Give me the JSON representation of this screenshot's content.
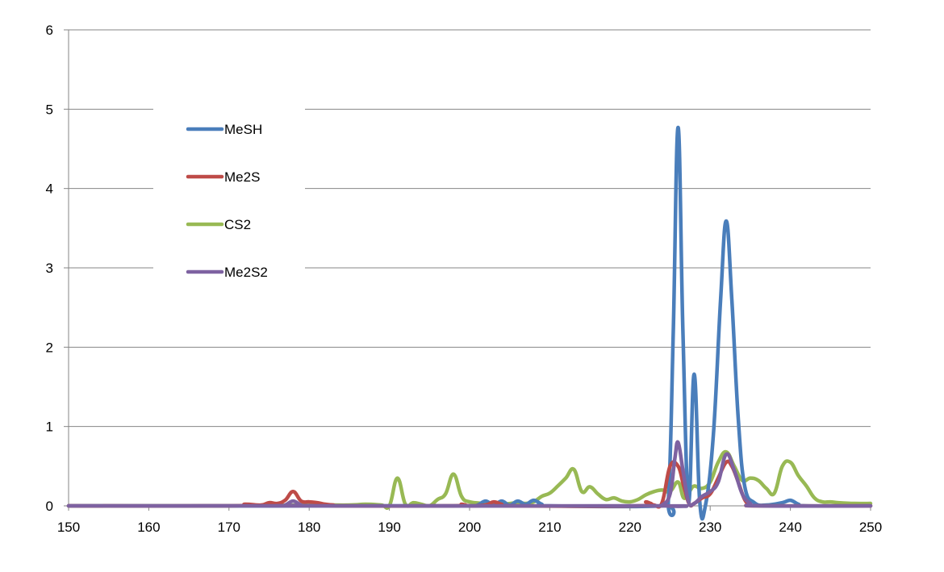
{
  "chart_data": {
    "type": "line",
    "title": "",
    "xlabel": "",
    "ylabel": "",
    "xlim": [
      150,
      250
    ],
    "ylim": [
      0,
      6
    ],
    "x_ticks": [
      150,
      160,
      170,
      180,
      190,
      200,
      210,
      220,
      230,
      240,
      250
    ],
    "y_ticks": [
      0,
      1,
      2,
      3,
      4,
      5,
      6
    ],
    "grid": "horizontal",
    "legend_position": "upper-left",
    "series": [
      {
        "name": "MeSH",
        "color": "#4a7ebb",
        "points": [
          [
            150,
            0
          ],
          [
            200,
            0
          ],
          [
            201,
            0.01
          ],
          [
            202,
            0.06
          ],
          [
            203,
            0.01
          ],
          [
            204,
            0.06
          ],
          [
            205,
            0.01
          ],
          [
            206,
            0.06
          ],
          [
            207,
            0.02
          ],
          [
            208,
            0.07
          ],
          [
            209,
            0.02
          ],
          [
            210,
            0
          ],
          [
            224,
            0
          ],
          [
            224.8,
            0.1
          ],
          [
            225.4,
            2.2
          ],
          [
            226,
            4.77
          ],
          [
            226.6,
            2.2
          ],
          [
            227.3,
            0.05
          ],
          [
            228,
            1.66
          ],
          [
            228.7,
            0.05
          ],
          [
            229.4,
            0
          ],
          [
            230.4,
            0.9
          ],
          [
            231.3,
            2.6
          ],
          [
            232,
            3.59
          ],
          [
            232.7,
            2.6
          ],
          [
            233.5,
            1.1
          ],
          [
            234.3,
            0.25
          ],
          [
            235.5,
            0.04
          ],
          [
            237,
            0.01
          ],
          [
            239,
            0.04
          ],
          [
            240,
            0.07
          ],
          [
            241,
            0.02
          ],
          [
            242,
            0
          ],
          [
            250,
            0
          ]
        ]
      },
      {
        "name": "Me2S",
        "color": "#be4b48",
        "points": [
          [
            150,
            0
          ],
          [
            170,
            0
          ],
          [
            172,
            0.02
          ],
          [
            174,
            0.01
          ],
          [
            175,
            0.04
          ],
          [
            176,
            0.03
          ],
          [
            177,
            0.07
          ],
          [
            178,
            0.18
          ],
          [
            179,
            0.06
          ],
          [
            180,
            0.05
          ],
          [
            181,
            0.04
          ],
          [
            182,
            0.02
          ],
          [
            183,
            0.01
          ],
          [
            184,
            0
          ],
          [
            198,
            0
          ],
          [
            199,
            0.02
          ],
          [
            200,
            0
          ],
          [
            202,
            0.01
          ],
          [
            203,
            0.05
          ],
          [
            204,
            0.02
          ],
          [
            205,
            0
          ],
          [
            221,
            0
          ],
          [
            222,
            0.05
          ],
          [
            223,
            0.01
          ],
          [
            224,
            0.04
          ],
          [
            225,
            0.5
          ],
          [
            226,
            0.5
          ],
          [
            226.7,
            0.25
          ],
          [
            227.4,
            0.02
          ],
          [
            228,
            0.03
          ],
          [
            229,
            0.1
          ],
          [
            230,
            0.15
          ],
          [
            231,
            0.35
          ],
          [
            232,
            0.55
          ],
          [
            232.7,
            0.5
          ],
          [
            233.5,
            0.3
          ],
          [
            234.3,
            0.08
          ],
          [
            235,
            0.02
          ],
          [
            236,
            0
          ],
          [
            250,
            0
          ]
        ]
      },
      {
        "name": "CS2",
        "color": "#98b954",
        "points": [
          [
            150,
            0
          ],
          [
            160,
            0
          ],
          [
            170,
            0
          ],
          [
            180,
            0.01
          ],
          [
            185,
            0.01
          ],
          [
            187,
            0.02
          ],
          [
            189,
            0.01
          ],
          [
            190,
            0
          ],
          [
            191,
            0.35
          ],
          [
            192,
            0.02
          ],
          [
            193,
            0.04
          ],
          [
            194,
            0.02
          ],
          [
            195,
            0
          ],
          [
            196,
            0.08
          ],
          [
            197,
            0.15
          ],
          [
            198,
            0.4
          ],
          [
            199,
            0.12
          ],
          [
            200,
            0.05
          ],
          [
            202,
            0.03
          ],
          [
            204,
            0.02
          ],
          [
            206,
            0.04
          ],
          [
            207,
            0.03
          ],
          [
            208,
            0.05
          ],
          [
            209,
            0.12
          ],
          [
            210,
            0.16
          ],
          [
            211,
            0.25
          ],
          [
            212,
            0.35
          ],
          [
            213,
            0.46
          ],
          [
            214,
            0.18
          ],
          [
            215,
            0.24
          ],
          [
            216,
            0.15
          ],
          [
            217,
            0.08
          ],
          [
            218,
            0.1
          ],
          [
            219,
            0.06
          ],
          [
            220,
            0.05
          ],
          [
            221,
            0.08
          ],
          [
            222,
            0.14
          ],
          [
            223,
            0.18
          ],
          [
            224,
            0.2
          ],
          [
            225,
            0.18
          ],
          [
            226,
            0.3
          ],
          [
            226.7,
            0.1
          ],
          [
            227.4,
            0.18
          ],
          [
            228,
            0.25
          ],
          [
            229,
            0.22
          ],
          [
            230,
            0.3
          ],
          [
            231,
            0.55
          ],
          [
            232,
            0.68
          ],
          [
            233,
            0.5
          ],
          [
            234,
            0.32
          ],
          [
            235,
            0.35
          ],
          [
            236,
            0.32
          ],
          [
            237,
            0.22
          ],
          [
            238,
            0.16
          ],
          [
            239,
            0.5
          ],
          [
            240,
            0.55
          ],
          [
            241,
            0.38
          ],
          [
            242,
            0.25
          ],
          [
            243,
            0.1
          ],
          [
            244,
            0.05
          ],
          [
            245,
            0.05
          ],
          [
            246,
            0.04
          ],
          [
            248,
            0.03
          ],
          [
            250,
            0.03
          ]
        ]
      },
      {
        "name": "Me2S2",
        "color": "#7e62a1",
        "points": [
          [
            150,
            0
          ],
          [
            176,
            0
          ],
          [
            177,
            0.01
          ],
          [
            178,
            0.06
          ],
          [
            179,
            0.01
          ],
          [
            180,
            0
          ],
          [
            223,
            0
          ],
          [
            224,
            0.01
          ],
          [
            225,
            0.15
          ],
          [
            225.6,
            0.6
          ],
          [
            226,
            0.8
          ],
          [
            226.6,
            0.45
          ],
          [
            227.3,
            0.05
          ],
          [
            228,
            0.03
          ],
          [
            229,
            0.12
          ],
          [
            230,
            0.18
          ],
          [
            231,
            0.3
          ],
          [
            232,
            0.65
          ],
          [
            233,
            0.45
          ],
          [
            234,
            0.15
          ],
          [
            235,
            0.03
          ],
          [
            236,
            0
          ],
          [
            250,
            0
          ]
        ]
      }
    ]
  }
}
